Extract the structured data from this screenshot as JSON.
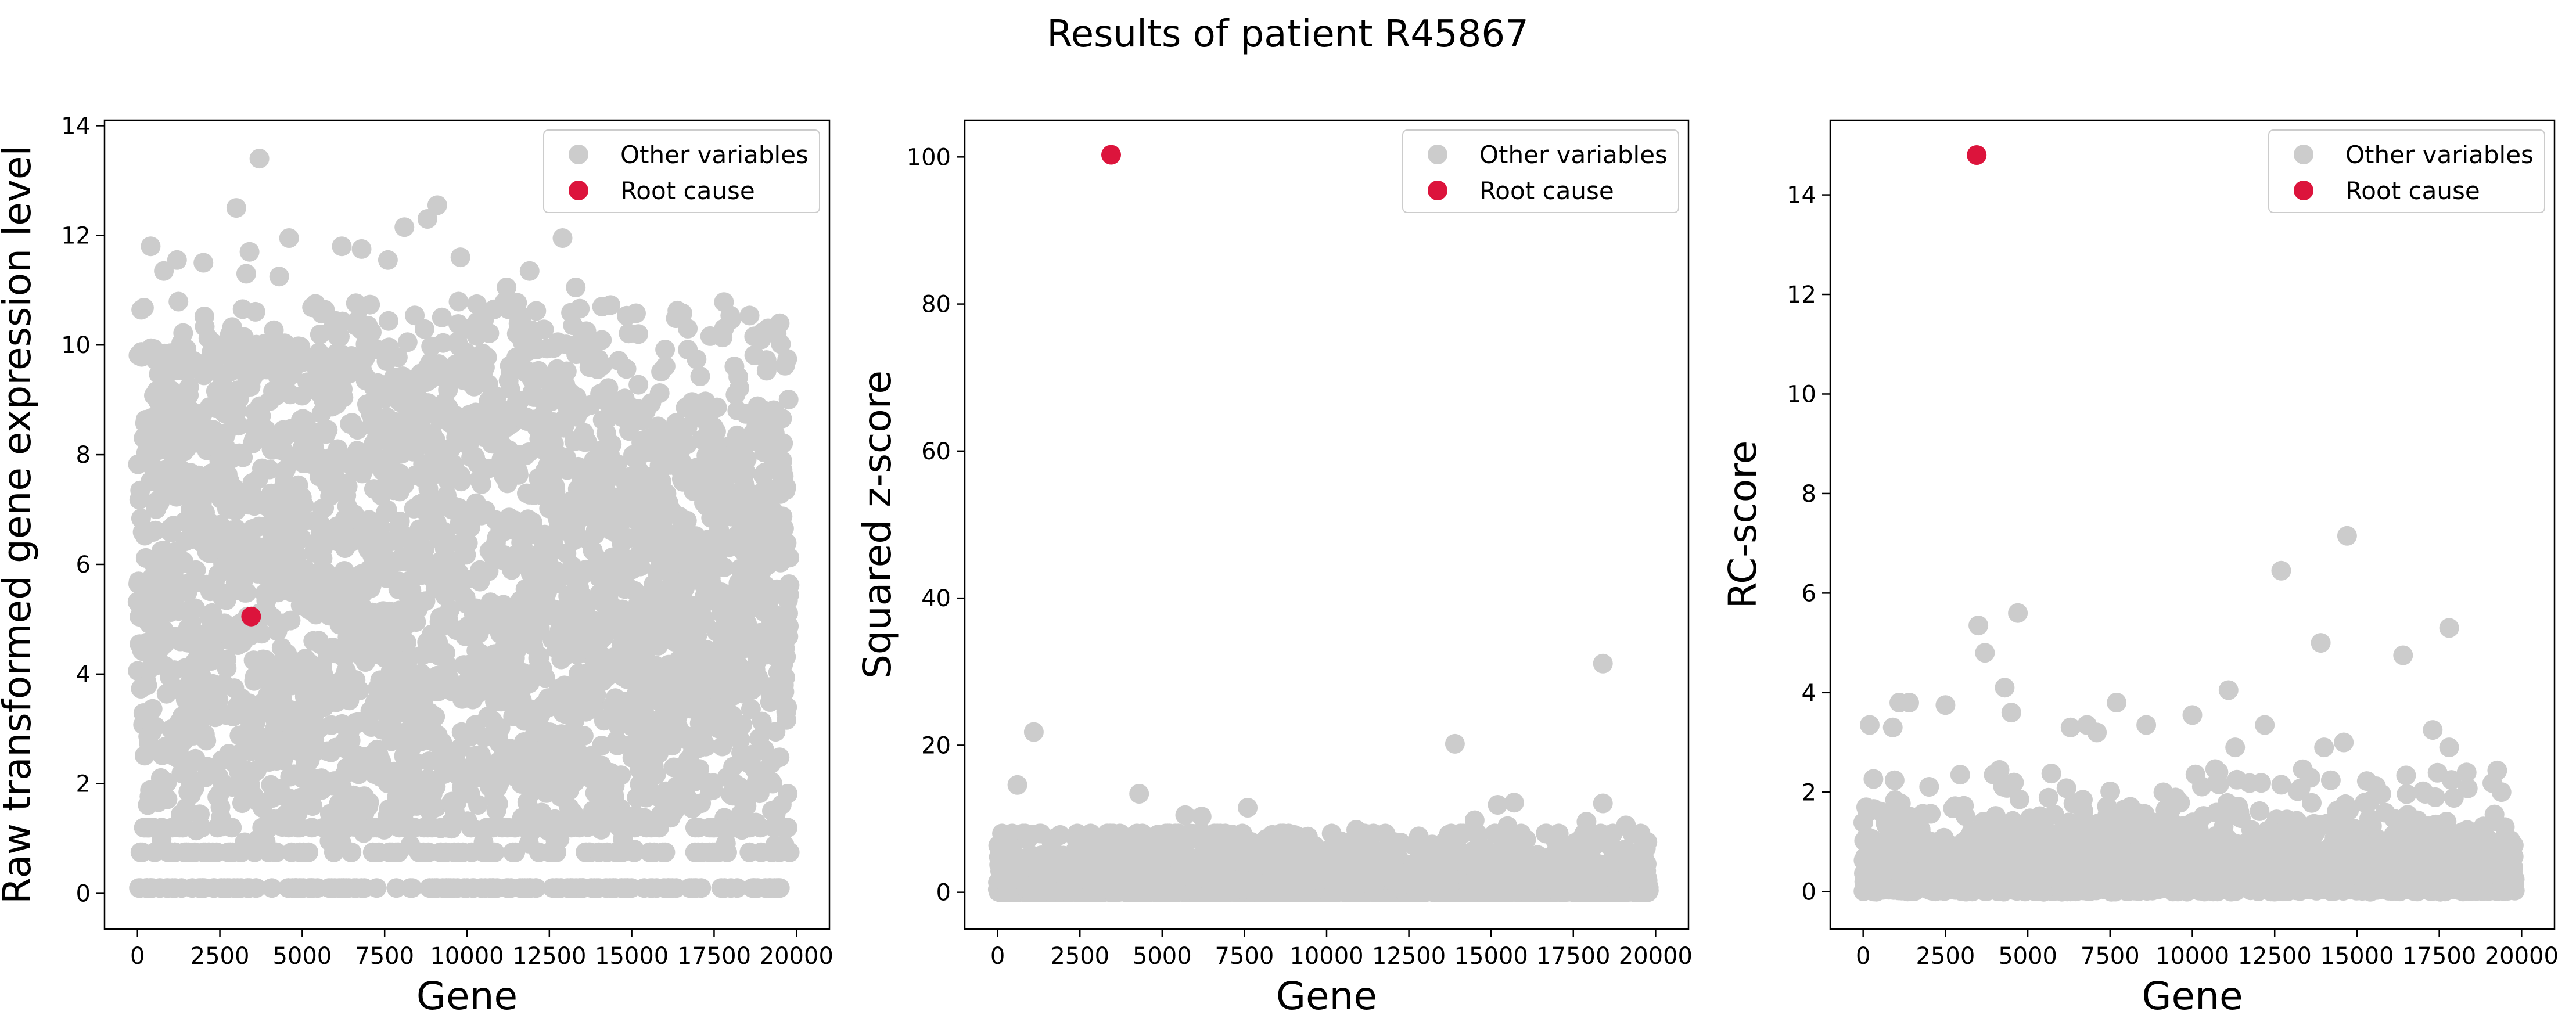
{
  "figure": {
    "title": "Results of patient R45867"
  },
  "colors": {
    "other": "#cccccc",
    "root": "#dc143c",
    "axis": "#000000"
  },
  "chart_data": [
    {
      "type": "scatter",
      "xlabel": "Gene",
      "ylabel": "Raw transformed gene expression level",
      "xlim": [
        -1000,
        21000
      ],
      "ylim": [
        -0.65,
        14.1
      ],
      "xticks": [
        0,
        2500,
        5000,
        7500,
        10000,
        12500,
        15000,
        17500,
        20000
      ],
      "xtick_labels": [
        "0",
        "2500",
        "5000",
        "7500",
        "10000",
        "12500",
        "15000",
        "17500",
        "20000"
      ],
      "yticks": [
        0,
        2,
        4,
        6,
        8,
        10,
        12,
        14
      ],
      "ytick_labels": [
        "0",
        "2",
        "4",
        "6",
        "8",
        "10",
        "12",
        "14"
      ],
      "legend": [
        "Other variables",
        "Root cause"
      ],
      "legend_position": "upper right",
      "series": [
        {
          "name": "Other variables",
          "n_genes": 19800,
          "description": "dense band of points spanning 0 to about 10 with discrete rows at 0.1, 0.75 and 1.2",
          "max_value": 13.4
        },
        {
          "name": "Root cause",
          "points": [
            {
              "x": 3450,
              "y": 5.05
            }
          ]
        }
      ],
      "outliers": [
        {
          "x": 3700,
          "y": 13.4
        },
        {
          "x": 3000,
          "y": 12.5
        },
        {
          "x": 9100,
          "y": 12.55
        },
        {
          "x": 8800,
          "y": 12.3
        },
        {
          "x": 8100,
          "y": 12.15
        },
        {
          "x": 4600,
          "y": 11.95
        },
        {
          "x": 12900,
          "y": 11.95
        },
        {
          "x": 400,
          "y": 11.8
        },
        {
          "x": 6200,
          "y": 11.8
        },
        {
          "x": 6800,
          "y": 11.75
        },
        {
          "x": 3400,
          "y": 11.7
        },
        {
          "x": 9800,
          "y": 11.6
        },
        {
          "x": 1200,
          "y": 11.55
        },
        {
          "x": 2000,
          "y": 11.5
        },
        {
          "x": 7600,
          "y": 11.55
        },
        {
          "x": 800,
          "y": 11.35
        },
        {
          "x": 11900,
          "y": 11.35
        },
        {
          "x": 3300,
          "y": 11.3
        },
        {
          "x": 4300,
          "y": 11.25
        },
        {
          "x": 11200,
          "y": 11.05
        },
        {
          "x": 13300,
          "y": 11.05
        },
        {
          "x": 5400,
          "y": 10.75
        },
        {
          "x": 14100,
          "y": 10.7
        },
        {
          "x": 16700,
          "y": 10.3
        },
        {
          "x": 17800,
          "y": 10.3
        },
        {
          "x": 15200,
          "y": 10.2
        },
        {
          "x": 19000,
          "y": 10.2
        },
        {
          "x": 19400,
          "y": 10.2
        }
      ]
    },
    {
      "type": "scatter",
      "xlabel": "Gene",
      "ylabel": "Squared z-score",
      "xlim": [
        -1000,
        21000
      ],
      "ylim": [
        -5,
        105
      ],
      "xticks": [
        0,
        2500,
        5000,
        7500,
        10000,
        12500,
        15000,
        17500,
        20000
      ],
      "xtick_labels": [
        "0",
        "2500",
        "5000",
        "7500",
        "10000",
        "12500",
        "15000",
        "17500",
        "20000"
      ],
      "yticks": [
        0,
        20,
        40,
        60,
        80,
        100
      ],
      "ytick_labels": [
        "0",
        "20",
        "40",
        "60",
        "80",
        "100"
      ],
      "legend": [
        "Other variables",
        "Root cause"
      ],
      "legend_position": "upper right",
      "series": [
        {
          "name": "Other variables",
          "n_genes": 19800,
          "description": "dense band of points mostly between 0 and 8",
          "max_value": 31
        },
        {
          "name": "Root cause",
          "points": [
            {
              "x": 3450,
              "y": 100.3
            }
          ]
        }
      ],
      "outliers": [
        {
          "x": 18400,
          "y": 31.1
        },
        {
          "x": 1100,
          "y": 21.8
        },
        {
          "x": 13900,
          "y": 20.2
        },
        {
          "x": 600,
          "y": 14.6
        },
        {
          "x": 4300,
          "y": 13.4
        },
        {
          "x": 15700,
          "y": 12.2
        },
        {
          "x": 18400,
          "y": 12.1
        },
        {
          "x": 15200,
          "y": 11.9
        },
        {
          "x": 7600,
          "y": 11.5
        },
        {
          "x": 5700,
          "y": 10.5
        },
        {
          "x": 6200,
          "y": 10.3
        },
        {
          "x": 14500,
          "y": 9.8
        },
        {
          "x": 17900,
          "y": 9.6
        },
        {
          "x": 19100,
          "y": 9.1
        },
        {
          "x": 15500,
          "y": 9.0
        },
        {
          "x": 10900,
          "y": 8.5
        },
        {
          "x": 18700,
          "y": 8.0
        },
        {
          "x": 1900,
          "y": 7.8
        },
        {
          "x": 11800,
          "y": 7.9
        },
        {
          "x": 12800,
          "y": 7.6
        }
      ]
    },
    {
      "type": "scatter",
      "xlabel": "Gene",
      "ylabel": "RC-score",
      "xlim": [
        -1000,
        21000
      ],
      "ylim": [
        -0.75,
        15.5
      ],
      "xticks": [
        0,
        2500,
        5000,
        7500,
        10000,
        12500,
        15000,
        17500,
        20000
      ],
      "xtick_labels": [
        "0",
        "2500",
        "5000",
        "7500",
        "10000",
        "12500",
        "15000",
        "17500",
        "20000"
      ],
      "yticks": [
        0,
        2,
        4,
        6,
        8,
        10,
        12,
        14
      ],
      "ytick_labels": [
        "0",
        "2",
        "4",
        "6",
        "8",
        "10",
        "12",
        "14"
      ],
      "legend": [
        "Other variables",
        "Root cause"
      ],
      "legend_position": "upper right",
      "series": [
        {
          "name": "Other variables",
          "n_genes": 19800,
          "description": "dense band of points mostly between 0 and 2",
          "max_value": 7.15
        },
        {
          "name": "Root cause",
          "points": [
            {
              "x": 3450,
              "y": 14.8
            }
          ]
        }
      ],
      "outliers": [
        {
          "x": 14700,
          "y": 7.15
        },
        {
          "x": 12700,
          "y": 6.45
        },
        {
          "x": 4700,
          "y": 5.6
        },
        {
          "x": 3500,
          "y": 5.35
        },
        {
          "x": 17800,
          "y": 5.3
        },
        {
          "x": 13900,
          "y": 5.0
        },
        {
          "x": 3700,
          "y": 4.8
        },
        {
          "x": 16400,
          "y": 4.75
        },
        {
          "x": 4300,
          "y": 4.1
        },
        {
          "x": 11100,
          "y": 4.05
        },
        {
          "x": 1100,
          "y": 3.8
        },
        {
          "x": 1400,
          "y": 3.8
        },
        {
          "x": 7700,
          "y": 3.8
        },
        {
          "x": 2500,
          "y": 3.75
        },
        {
          "x": 4500,
          "y": 3.6
        },
        {
          "x": 10000,
          "y": 3.55
        },
        {
          "x": 200,
          "y": 3.35
        },
        {
          "x": 6800,
          "y": 3.35
        },
        {
          "x": 8600,
          "y": 3.35
        },
        {
          "x": 12200,
          "y": 3.35
        },
        {
          "x": 900,
          "y": 3.3
        },
        {
          "x": 6300,
          "y": 3.3
        },
        {
          "x": 17300,
          "y": 3.25
        },
        {
          "x": 7100,
          "y": 3.2
        },
        {
          "x": 14600,
          "y": 3.0
        },
        {
          "x": 14000,
          "y": 2.9
        },
        {
          "x": 17800,
          "y": 2.9
        },
        {
          "x": 11300,
          "y": 2.9
        }
      ]
    }
  ]
}
